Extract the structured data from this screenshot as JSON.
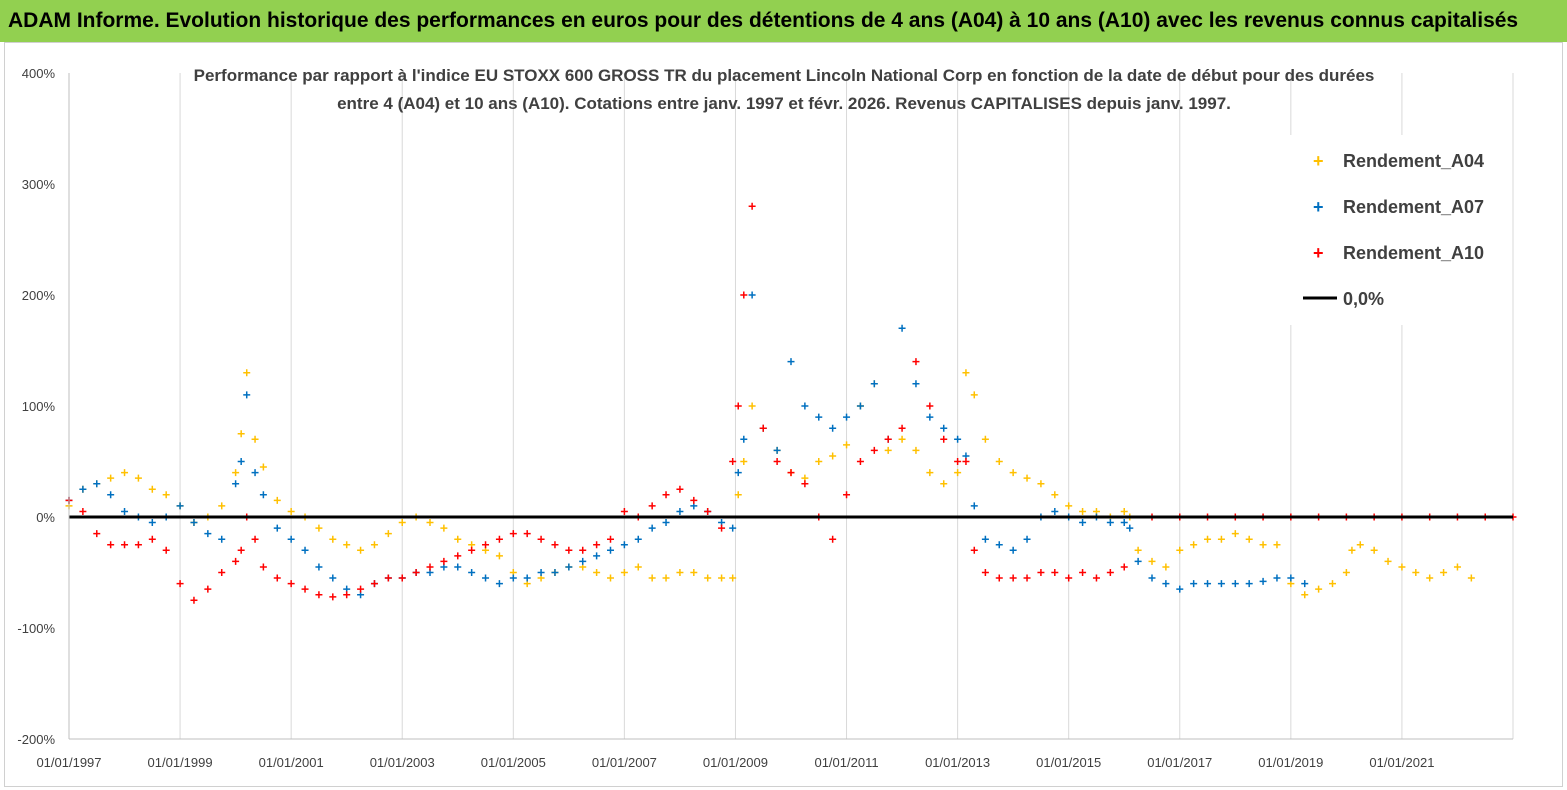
{
  "banner": {
    "text": "ADAM Informe. Evolution historique des performances en euros pour des détentions de 4 ans (A04) à 10 ans (A10) avec les revenus connus capitalisés"
  },
  "colors": {
    "banner_bg": "#92d050",
    "a04": "#ffc000",
    "a07": "#0070c0",
    "a10": "#ff0000",
    "zero_line": "#000000"
  },
  "chart_data": {
    "type": "scatter",
    "title_lines": [
      "Performance par rapport à l'indice EU STOXX 600 GROSS TR  du placement Lincoln National Corp en fonction de la date de début pour des durées",
      "entre 4 (A04) et 10 ans (A10). Cotations entre janv. 1997 et févr. 2026. Revenus CAPITALISES depuis janv. 1997."
    ],
    "xlabel": "",
    "ylabel": "",
    "x_range": [
      1997.0,
      2023.0
    ],
    "ylim": [
      -200,
      400
    ],
    "y_ticks": [
      "-200%",
      "-100%",
      "0%",
      "100%",
      "200%",
      "300%",
      "400%"
    ],
    "y_tick_values": [
      -200,
      -100,
      0,
      100,
      200,
      300,
      400
    ],
    "x_ticks": [
      "01/01/1997",
      "01/01/1999",
      "01/01/2001",
      "01/01/2003",
      "01/01/2005",
      "01/01/2007",
      "01/01/2009",
      "01/01/2011",
      "01/01/2013",
      "01/01/2015",
      "01/01/2017",
      "01/01/2019",
      "01/01/2021"
    ],
    "x_tick_values": [
      1997,
      1999,
      2001,
      2003,
      2005,
      2007,
      2009,
      2011,
      2013,
      2015,
      2017,
      2019,
      2021
    ],
    "grid": "vertical",
    "legend_position": "right",
    "series": [
      {
        "name": "Rendement_A04",
        "color": "#ffc000",
        "x": [
          1997.0,
          1997.25,
          1997.5,
          1997.75,
          1998.0,
          1998.25,
          1998.5,
          1998.75,
          1999.0,
          1999.25,
          1999.5,
          1999.75,
          2000.0,
          2000.1,
          2000.2,
          2000.35,
          2000.5,
          2000.75,
          2001.0,
          2001.25,
          2001.5,
          2001.75,
          2002.0,
          2002.25,
          2002.5,
          2002.75,
          2003.0,
          2003.25,
          2003.5,
          2003.75,
          2004.0,
          2004.25,
          2004.5,
          2004.75,
          2005.0,
          2005.25,
          2005.5,
          2005.75,
          2006.0,
          2006.25,
          2006.5,
          2006.75,
          2007.0,
          2007.25,
          2007.5,
          2007.75,
          2008.0,
          2008.25,
          2008.5,
          2008.75,
          2008.95,
          2009.05,
          2009.15,
          2009.3,
          2009.5,
          2009.75,
          2010.0,
          2010.25,
          2010.5,
          2010.75,
          2011.0,
          2011.25,
          2011.5,
          2011.75,
          2012.0,
          2012.25,
          2012.5,
          2012.75,
          2013.0,
          2013.15,
          2013.3,
          2013.5,
          2013.75,
          2014.0,
          2014.25,
          2014.5,
          2014.75,
          2015.0,
          2015.25,
          2015.5,
          2015.75,
          2016.0,
          2016.1,
          2016.25,
          2016.5,
          2016.75,
          2017.0,
          2017.25,
          2017.5,
          2017.75,
          2018.0,
          2018.25,
          2018.5,
          2018.75,
          2019.0,
          2019.25,
          2019.5,
          2019.75,
          2020.0,
          2020.1,
          2020.25,
          2020.5,
          2020.75,
          2021.0,
          2021.25,
          2021.5,
          2021.75,
          2022.0,
          2022.25
        ],
        "y": [
          10,
          25,
          30,
          35,
          40,
          35,
          25,
          20,
          10,
          -5,
          0,
          10,
          40,
          75,
          130,
          70,
          45,
          15,
          5,
          0,
          -10,
          -20,
          -25,
          -30,
          -25,
          -15,
          -5,
          0,
          -5,
          -10,
          -20,
          -25,
          -30,
          -35,
          -50,
          -60,
          -55,
          -50,
          -45,
          -45,
          -50,
          -55,
          -50,
          -45,
          -55,
          -55,
          -50,
          -50,
          -55,
          -55,
          -55,
          20,
          50,
          100,
          80,
          60,
          40,
          35,
          50,
          55,
          65,
          100,
          120,
          60,
          70,
          60,
          40,
          30,
          40,
          130,
          110,
          70,
          50,
          40,
          35,
          30,
          20,
          10,
          5,
          5,
          0,
          5,
          0,
          -30,
          -40,
          -45,
          -30,
          -25,
          -20,
          -20,
          -15,
          -20,
          -25,
          -25,
          -60,
          -70,
          -65,
          -60,
          -50,
          -30,
          -25,
          -30,
          -40,
          -45,
          -50,
          -55,
          -50,
          -45,
          -55
        ]
      },
      {
        "name": "Rendement_A07",
        "color": "#0070c0",
        "x": [
          1997.0,
          1997.25,
          1997.5,
          1997.75,
          1998.0,
          1998.25,
          1998.5,
          1998.75,
          1999.0,
          1999.25,
          1999.5,
          1999.75,
          2000.0,
          2000.1,
          2000.2,
          2000.35,
          2000.5,
          2000.75,
          2001.0,
          2001.25,
          2001.5,
          2001.75,
          2002.0,
          2002.25,
          2002.5,
          2002.75,
          2003.0,
          2003.25,
          2003.5,
          2003.75,
          2004.0,
          2004.25,
          2004.5,
          2004.75,
          2005.0,
          2005.25,
          2005.5,
          2005.75,
          2006.0,
          2006.25,
          2006.5,
          2006.75,
          2007.0,
          2007.25,
          2007.5,
          2007.75,
          2008.0,
          2008.25,
          2008.5,
          2008.75,
          2008.95,
          2009.05,
          2009.15,
          2009.3,
          2009.5,
          2009.75,
          2010.0,
          2010.25,
          2010.5,
          2010.75,
          2011.0,
          2011.25,
          2011.5,
          2011.75,
          2012.0,
          2012.25,
          2012.5,
          2012.75,
          2013.0,
          2013.15,
          2013.3,
          2013.5,
          2013.75,
          2014.0,
          2014.25,
          2014.5,
          2014.75,
          2015.0,
          2015.25,
          2015.5,
          2015.75,
          2016.0,
          2016.1,
          2016.25,
          2016.5,
          2016.75,
          2017.0,
          2017.25,
          2017.5,
          2017.75,
          2018.0,
          2018.25,
          2018.5,
          2018.75,
          2019.0,
          2019.25
        ],
        "y": [
          15,
          25,
          30,
          20,
          5,
          0,
          -5,
          0,
          10,
          -5,
          -15,
          -20,
          30,
          50,
          110,
          40,
          20,
          -10,
          -20,
          -30,
          -45,
          -55,
          -65,
          -70,
          -60,
          -55,
          -55,
          -50,
          -50,
          -45,
          -45,
          -50,
          -55,
          -60,
          -55,
          -55,
          -50,
          -50,
          -45,
          -40,
          -35,
          -30,
          -25,
          -20,
          -10,
          -5,
          5,
          10,
          5,
          -5,
          -10,
          40,
          70,
          200,
          80,
          60,
          140,
          100,
          90,
          80,
          90,
          100,
          120,
          70,
          170,
          120,
          90,
          80,
          70,
          55,
          10,
          -20,
          -25,
          -30,
          -20,
          0,
          5,
          0,
          -5,
          0,
          -5,
          -5,
          -10,
          -40,
          -55,
          -60,
          -65,
          -60,
          -60,
          -60,
          -60,
          -60,
          -58,
          -55,
          -55,
          -60
        ]
      },
      {
        "name": "Rendement_A10",
        "color": "#ff0000",
        "x": [
          1997.0,
          1997.25,
          1997.5,
          1997.75,
          1998.0,
          1998.25,
          1998.5,
          1998.75,
          1999.0,
          1999.25,
          1999.5,
          1999.75,
          2000.0,
          2000.1,
          2000.2,
          2000.35,
          2000.5,
          2000.75,
          2001.0,
          2001.25,
          2001.5,
          2001.75,
          2002.0,
          2002.25,
          2002.5,
          2002.75,
          2003.0,
          2003.25,
          2003.5,
          2003.75,
          2004.0,
          2004.25,
          2004.5,
          2004.75,
          2005.0,
          2005.25,
          2005.5,
          2005.75,
          2006.0,
          2006.25,
          2006.5,
          2006.75,
          2007.0,
          2007.25,
          2007.5,
          2007.75,
          2008.0,
          2008.25,
          2008.5,
          2008.75,
          2008.95,
          2009.05,
          2009.15,
          2009.3,
          2009.5,
          2009.75,
          2010.0,
          2010.25,
          2010.5,
          2010.75,
          2011.0,
          2011.25,
          2011.5,
          2011.75,
          2012.0,
          2012.25,
          2012.5,
          2012.75,
          2013.0,
          2013.15,
          2013.3,
          2013.5,
          2013.75,
          2014.0,
          2014.25,
          2014.5,
          2014.75,
          2015.0,
          2015.25,
          2015.5,
          2015.75,
          2016.0,
          2016.5,
          2017.0,
          2017.5,
          2018.0,
          2018.5,
          2019.0,
          2019.5,
          2020.0,
          2020.5,
          2021.0,
          2021.5,
          2022.0,
          2022.5,
          2023.0
        ],
        "y": [
          15,
          5,
          -15,
          -25,
          -25,
          -25,
          -20,
          -30,
          -60,
          -75,
          -65,
          -50,
          -40,
          -30,
          0,
          -20,
          -45,
          -55,
          -60,
          -65,
          -70,
          -72,
          -70,
          -65,
          -60,
          -55,
          -55,
          -50,
          -45,
          -40,
          -35,
          -30,
          -25,
          -20,
          -15,
          -15,
          -20,
          -25,
          -30,
          -30,
          -25,
          -20,
          5,
          0,
          10,
          20,
          25,
          15,
          5,
          -10,
          50,
          100,
          200,
          280,
          80,
          50,
          40,
          30,
          0,
          -20,
          20,
          50,
          60,
          70,
          80,
          140,
          100,
          70,
          50,
          50,
          -30,
          -50,
          -55,
          -55,
          -55,
          -50,
          -50,
          -55,
          -50,
          -55,
          -50,
          -45,
          0,
          0,
          0,
          0,
          0,
          0,
          0,
          0,
          0,
          0,
          0,
          0,
          0,
          0
        ]
      }
    ],
    "reference_line": {
      "name": "0,0%",
      "value": 0
    }
  }
}
